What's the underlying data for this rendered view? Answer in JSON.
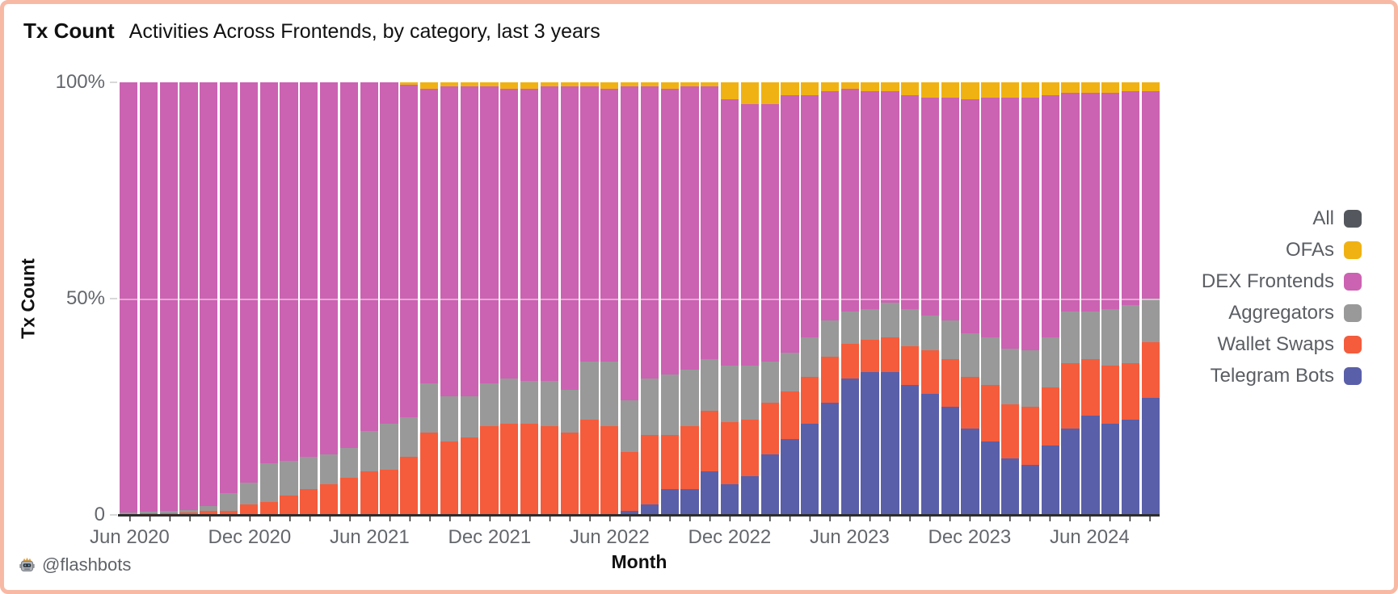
{
  "header": {
    "title": "Tx Count",
    "subtitle": "Activities Across Frontends, by category, last 3 years"
  },
  "chart_data": {
    "type": "bar",
    "stacked": true,
    "normalized": "percent",
    "title": "Tx Count — Activities Across Frontends, by category, last 3 years",
    "xlabel": "Month",
    "ylabel": "Tx Count",
    "ylim": [
      0,
      100
    ],
    "grid": "50% faint line",
    "legend_position": "right",
    "categories": [
      "Jun 2020",
      "Jul 2020",
      "Aug 2020",
      "Sep 2020",
      "Oct 2020",
      "Nov 2020",
      "Dec 2020",
      "Jan 2021",
      "Feb 2021",
      "Mar 2021",
      "Apr 2021",
      "May 2021",
      "Jun 2021",
      "Jul 2021",
      "Aug 2021",
      "Sep 2021",
      "Oct 2021",
      "Nov 2021",
      "Dec 2021",
      "Jan 2022",
      "Feb 2022",
      "Mar 2022",
      "Apr 2022",
      "May 2022",
      "Jun 2022",
      "Jul 2022",
      "Aug 2022",
      "Sep 2022",
      "Oct 2022",
      "Nov 2022",
      "Dec 2022",
      "Jan 2023",
      "Feb 2023",
      "Mar 2023",
      "Apr 2023",
      "May 2023",
      "Jun 2023",
      "Jul 2023",
      "Aug 2023",
      "Sep 2023",
      "Oct 2023",
      "Nov 2023",
      "Dec 2023",
      "Jan 2024",
      "Feb 2024",
      "Mar 2024",
      "Apr 2024",
      "May 2024",
      "Jun 2024",
      "Jul 2024",
      "Aug 2024",
      "Sep 2024"
    ],
    "series": [
      {
        "name": "Telegram Bots",
        "color": "#5a5fa9",
        "values": [
          0,
          0,
          0,
          0,
          0,
          0,
          0,
          0,
          0,
          0,
          0,
          0,
          0,
          0,
          0,
          0,
          0,
          0,
          0,
          0,
          0,
          0,
          0,
          0,
          0,
          1,
          2.5,
          6,
          6,
          10,
          7,
          9,
          14,
          17.5,
          21,
          26,
          31.5,
          33,
          33,
          30,
          28,
          25,
          20,
          17,
          13,
          11.5,
          16,
          20,
          23,
          21,
          22,
          27
        ]
      },
      {
        "name": "Wallet Swaps",
        "color": "#f45c3c",
        "values": [
          0,
          0.3,
          0.3,
          0.5,
          1,
          1,
          2.5,
          3,
          4.5,
          6,
          7,
          8.5,
          10,
          10.5,
          13.5,
          19,
          17,
          18,
          20.5,
          21,
          21,
          20.5,
          19,
          22,
          20.5,
          13.5,
          16,
          12.5,
          14.5,
          14,
          14.5,
          13,
          12,
          11,
          11,
          10.5,
          8,
          7.5,
          8,
          9,
          10,
          11,
          12,
          13,
          12.5,
          13.5,
          13.5,
          15,
          13,
          13.5,
          13,
          13
        ]
      },
      {
        "name": "Aggregators",
        "color": "#999999",
        "values": [
          0.5,
          0.5,
          0.7,
          0.7,
          1,
          4,
          5,
          9,
          8,
          7.5,
          7,
          7,
          9.5,
          10.5,
          9,
          11.5,
          10.5,
          9.5,
          10,
          10.5,
          10,
          10.5,
          10,
          13.5,
          15,
          12,
          13,
          14,
          13,
          12,
          13,
          12.5,
          9.5,
          9,
          9,
          8.5,
          7.5,
          7,
          8,
          8.5,
          8,
          9,
          10,
          11,
          13,
          13,
          11.5,
          12,
          11,
          13,
          13.5,
          10
        ]
      },
      {
        "name": "DEX Frontends",
        "color": "#cc62b2",
        "values": [
          99.5,
          99.2,
          99,
          98.8,
          98,
          95,
          92.5,
          88,
          87.5,
          86.5,
          86,
          84.5,
          80.5,
          79,
          77,
          68,
          71.5,
          71.5,
          68.5,
          67,
          67.5,
          68,
          70,
          63.5,
          63,
          72.5,
          67.5,
          66,
          65.5,
          63,
          61.5,
          60.5,
          59.5,
          59.5,
          56,
          53,
          51.5,
          50.5,
          49,
          49.5,
          50.5,
          51.5,
          54,
          55.5,
          58,
          58.5,
          56,
          50.5,
          50.5,
          50,
          49.5,
          48
        ]
      },
      {
        "name": "OFAs",
        "color": "#f0b213",
        "values": [
          0,
          0,
          0,
          0,
          0,
          0,
          0,
          0,
          0,
          0,
          0,
          0,
          0,
          0,
          0.5,
          1.5,
          1,
          1,
          1,
          1.5,
          1.5,
          1,
          1,
          1,
          1.5,
          1,
          1,
          1.5,
          1,
          1,
          4,
          5,
          5,
          3,
          3,
          2,
          1.5,
          2,
          2,
          3,
          3.5,
          3.5,
          4,
          3.5,
          3.5,
          3.5,
          3,
          2.5,
          2.5,
          2.5,
          2,
          2
        ]
      }
    ],
    "legend": [
      {
        "label": "All",
        "color": "#54585e"
      },
      {
        "label": "OFAs",
        "color": "#f0b213"
      },
      {
        "label": "DEX Frontends",
        "color": "#cc62b2"
      },
      {
        "label": "Aggregators",
        "color": "#999999"
      },
      {
        "label": "Wallet Swaps",
        "color": "#f45c3c"
      },
      {
        "label": "Telegram Bots",
        "color": "#5a5fa9"
      }
    ],
    "yticks": [
      {
        "label": "100%",
        "value": 100
      },
      {
        "label": "50%",
        "value": 50
      },
      {
        "label": "0",
        "value": 0
      }
    ],
    "xticks": [
      {
        "label": "Jun 2020",
        "month_index": 0
      },
      {
        "label": "Dec 2020",
        "month_index": 6
      },
      {
        "label": "Jun 2021",
        "month_index": 12
      },
      {
        "label": "Dec 2021",
        "month_index": 18
      },
      {
        "label": "Jun 2022",
        "month_index": 24
      },
      {
        "label": "Dec 2022",
        "month_index": 30
      },
      {
        "label": "Jun 2023",
        "month_index": 36
      },
      {
        "label": "Dec 2023",
        "month_index": 42
      },
      {
        "label": "Jun 2024",
        "month_index": 48
      }
    ]
  },
  "footer": {
    "credit": "@flashbots",
    "credit_icon": "flashbots-robot-icon"
  }
}
